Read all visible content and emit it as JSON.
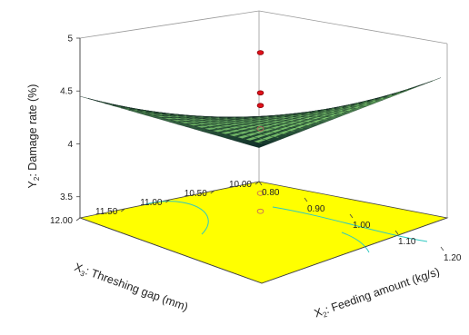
{
  "chart_data": {
    "type": "surface3d",
    "zlabel": {
      "prefix": "Y",
      "sub": "2",
      "rest": ": Damage rate (%)"
    },
    "xlabel": {
      "prefix": "X",
      "sub": "2",
      "rest": ": Feeding amount (kg/s)"
    },
    "ylabel": {
      "prefix": "X",
      "sub": "3",
      "rest": ": Threshing gap (mm)"
    },
    "x_ticks": [
      "0.80",
      "0.90",
      "1.00",
      "1.10",
      "1.20"
    ],
    "y_ticks": [
      "10.00",
      "10.50",
      "11.00",
      "11.50",
      "12.00"
    ],
    "z_ticks": [
      "3.5",
      "4",
      "4.5",
      "5"
    ],
    "xlim": [
      0.8,
      1.2
    ],
    "ylim": [
      10.0,
      12.0
    ],
    "zlim": [
      3.3,
      5.0
    ],
    "surface_corners": [
      {
        "x": 0.8,
        "y": 10.0,
        "z": 3.62
      },
      {
        "x": 1.2,
        "y": 10.0,
        "z": 4.9
      },
      {
        "x": 0.8,
        "y": 12.0,
        "z": 4.45
      },
      {
        "x": 1.2,
        "y": 12.0,
        "z": 4.62
      }
    ],
    "design_points": [
      {
        "x": 1.0,
        "y": 11.0,
        "z": 5.0
      },
      {
        "x": 1.0,
        "y": 11.0,
        "z": 4.62
      },
      {
        "x": 1.0,
        "y": 11.0,
        "z": 4.5
      },
      {
        "x": 1.0,
        "y": 11.0,
        "z": 4.28
      },
      {
        "x": 1.0,
        "y": 11.0,
        "z": 3.67
      },
      {
        "x": 1.0,
        "y": 11.0,
        "z": 3.5
      }
    ],
    "colors": {
      "surface_low": "#0c2b27",
      "surface_high": "#8ee07a",
      "floor": "#ffff00",
      "floor_contour": "#2fc8c0",
      "points": "#e0101a"
    },
    "grid": false
  }
}
